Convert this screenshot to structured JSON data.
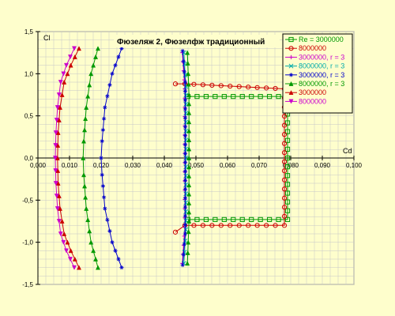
{
  "chart_data": {
    "type": "line",
    "title": "Фюзеляж 2, Фюзелфж традиционный",
    "xlabel": "Cd",
    "ylabel": "Cl",
    "xlim": [
      0,
      0.1
    ],
    "ylim": [
      -1.5,
      1.5
    ],
    "xticks": [
      "0,000",
      "0,010",
      "0,020",
      "0,030",
      "0,040",
      "0,050",
      "0,060",
      "0,070",
      "0,080",
      "0,090",
      "0,100"
    ],
    "yticks": [
      "1,5",
      "1,0",
      "0,5",
      "0,0",
      "-0,5",
      "-1,0",
      "-1,5"
    ],
    "grid": true,
    "legend_position": "top-right",
    "series": [
      {
        "name": "Re = 3000000",
        "color": "#009900",
        "marker": "square",
        "points": [
          [
            0.0475,
            0.73
          ],
          [
            0.079,
            0.73
          ],
          [
            0.079,
            -0.73
          ],
          [
            0.0475,
            -0.73
          ]
        ]
      },
      {
        "name": "8000000",
        "color": "#cc0000",
        "marker": "circle",
        "points": [
          [
            0.0435,
            0.88
          ],
          [
            0.0465,
            0.88
          ],
          [
            0.078,
            0.82
          ],
          [
            0.078,
            -0.8
          ],
          [
            0.0465,
            -0.8
          ],
          [
            0.0435,
            -0.88
          ]
        ]
      },
      {
        "name": "3000000, r = 3",
        "color": "#cc00cc",
        "marker": "plus",
        "points": [
          [
            0.0457,
            1.25
          ],
          [
            0.0465,
            0.82
          ],
          [
            0.0465,
            -0.82
          ],
          [
            0.0457,
            -1.25
          ]
        ]
      },
      {
        "name": "8000000, r = 3",
        "color": "#00aaaa",
        "marker": "x",
        "points": [
          [
            0.0462,
            1.25
          ],
          [
            0.0468,
            0.85
          ],
          [
            0.0468,
            -0.85
          ],
          [
            0.0462,
            -1.25
          ]
        ]
      },
      {
        "name": "3000000, r = 3",
        "color": "#0000cc",
        "marker": "star",
        "points": [
          [
            0.0458,
            1.27
          ],
          [
            0.0466,
            0.9
          ],
          [
            0.0466,
            -0.9
          ],
          [
            0.0458,
            -1.27
          ]
        ]
      },
      {
        "name": "8000000, r = 3",
        "color": "#009900",
        "marker": "triangle",
        "points": [
          [
            0.0473,
            1.25
          ],
          [
            0.0478,
            0.75
          ],
          [
            0.0478,
            -0.75
          ],
          [
            0.0473,
            -1.25
          ]
        ]
      },
      {
        "name": "3000000",
        "color": "#cc0000",
        "marker": "triangle",
        "points": [
          [
            0.013,
            1.3
          ],
          [
            0.0104,
            1.1
          ],
          [
            0.0083,
            0.9
          ],
          [
            0.007,
            0.6
          ],
          [
            0.0064,
            0.3
          ],
          [
            0.0062,
            0.0
          ],
          [
            0.0064,
            -0.3
          ],
          [
            0.007,
            -0.6
          ],
          [
            0.0083,
            -0.9
          ],
          [
            0.0104,
            -1.1
          ],
          [
            0.013,
            -1.3
          ]
        ]
      },
      {
        "name": "8000000",
        "color": "#cc00cc",
        "marker": "triangle-down",
        "points": [
          [
            0.0115,
            1.3
          ],
          [
            0.009,
            1.1
          ],
          [
            0.0072,
            0.9
          ],
          [
            0.0062,
            0.6
          ],
          [
            0.0057,
            0.3
          ],
          [
            0.0055,
            0.0
          ],
          [
            0.0057,
            -0.3
          ],
          [
            0.0062,
            -0.6
          ],
          [
            0.0072,
            -0.9
          ],
          [
            0.009,
            -1.1
          ],
          [
            0.0115,
            -1.3
          ]
        ]
      },
      {
        "name": "",
        "color": "#009900",
        "marker": "triangle",
        "points": [
          [
            0.019,
            1.3
          ],
          [
            0.0168,
            1.0
          ],
          [
            0.0153,
            0.6
          ],
          [
            0.0145,
            0.2
          ],
          [
            0.0143,
            0.0
          ],
          [
            0.0145,
            -0.2
          ],
          [
            0.0153,
            -0.6
          ],
          [
            0.0168,
            -1.0
          ],
          [
            0.019,
            -1.3
          ]
        ]
      },
      {
        "name": "",
        "color": "#0000cc",
        "marker": "star",
        "points": [
          [
            0.0265,
            1.3
          ],
          [
            0.0235,
            1.0
          ],
          [
            0.0212,
            0.6
          ],
          [
            0.0203,
            0.2
          ],
          [
            0.02,
            0.0
          ],
          [
            0.0203,
            -0.2
          ],
          [
            0.0212,
            -0.6
          ],
          [
            0.0235,
            -1.0
          ],
          [
            0.0265,
            -1.3
          ]
        ]
      }
    ]
  }
}
